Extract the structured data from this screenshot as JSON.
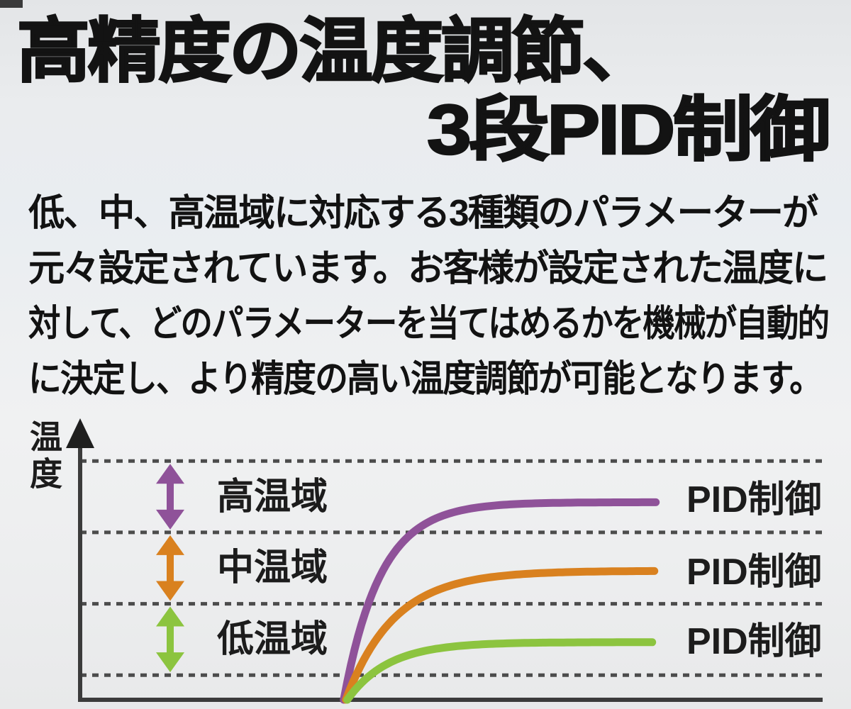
{
  "title": {
    "line1": "高精度の温度調節、",
    "line2": "3段PID制御"
  },
  "body": {
    "lines": [
      "低、中、高温域に対応する3種類のパラメーターが",
      "元々設定されています。お客様が設定された温度に",
      "対して、どのパラメーターを当てはめるかを機械が自動的",
      "に決定し、より精度の高い温度調節が可能となります。"
    ]
  },
  "chart_data": {
    "type": "line",
    "title": "",
    "xlabel": "",
    "ylabel": "温度",
    "grid": "horizontal-dashed",
    "legend_position": "right-of-curves",
    "axis_color": "#3b3b3b",
    "gridline_color": "#4c4c4c",
    "gridline_pct": [
      9,
      35,
      61,
      87
    ],
    "curve_start_x_pct": 35.5,
    "curve_end_x_pct": 78,
    "series": [
      {
        "name": "高温域",
        "pid_label": "PID制御",
        "color": "#8f5299",
        "band_pct": [
          61,
          87
        ],
        "plateau_pct": 72
      },
      {
        "name": "中温域",
        "pid_label": "PID制御",
        "color": "#d9811f",
        "band_pct": [
          35,
          61
        ],
        "plateau_pct": 47
      },
      {
        "name": "低温域",
        "pid_label": "PID制御",
        "color": "#8cc43f",
        "band_pct": [
          9,
          35
        ],
        "plateau_pct": 21
      }
    ]
  }
}
